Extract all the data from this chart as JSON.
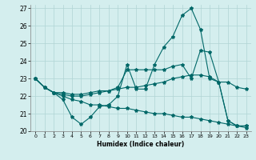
{
  "xlabel": "Humidex (Indice chaleur)",
  "xlim": [
    -0.5,
    23.5
  ],
  "ylim": [
    20,
    27.2
  ],
  "yticks": [
    20,
    21,
    22,
    23,
    24,
    25,
    26,
    27
  ],
  "xticks": [
    0,
    1,
    2,
    3,
    4,
    5,
    6,
    7,
    8,
    9,
    10,
    11,
    12,
    13,
    14,
    15,
    16,
    17,
    18,
    19,
    20,
    21,
    22,
    23
  ],
  "bg_color": "#d4eeee",
  "grid_color": "#b0d4d4",
  "line_color": "#006868",
  "line1_y": [
    23.0,
    22.5,
    22.2,
    21.8,
    20.8,
    20.4,
    20.8,
    21.4,
    21.5,
    22.0,
    23.8,
    22.4,
    22.4,
    23.8,
    24.8,
    25.4,
    26.6,
    27.0,
    25.8,
    23.0,
    22.8,
    20.6,
    20.3,
    20.3
  ],
  "line2_y": [
    23.0,
    22.5,
    22.2,
    22.2,
    22.1,
    22.1,
    22.2,
    22.3,
    22.3,
    22.4,
    22.5,
    22.5,
    22.6,
    22.7,
    22.8,
    23.0,
    23.1,
    23.2,
    23.2,
    23.1,
    22.8,
    22.8,
    22.5,
    22.4
  ],
  "line3_y": [
    23.0,
    22.5,
    22.2,
    22.0,
    21.8,
    21.7,
    21.5,
    21.5,
    21.4,
    21.3,
    21.3,
    21.2,
    21.1,
    21.0,
    21.0,
    20.9,
    20.8,
    20.8,
    20.7,
    20.6,
    20.5,
    20.4,
    20.3,
    20.2
  ],
  "line4_y": [
    23.0,
    22.5,
    22.2,
    22.1,
    22.0,
    22.0,
    22.1,
    22.2,
    22.3,
    22.5,
    23.5,
    23.5,
    23.5,
    23.5,
    23.5,
    23.7,
    23.8,
    23.0,
    24.6,
    24.5,
    22.8,
    20.6,
    20.3,
    20.3
  ]
}
